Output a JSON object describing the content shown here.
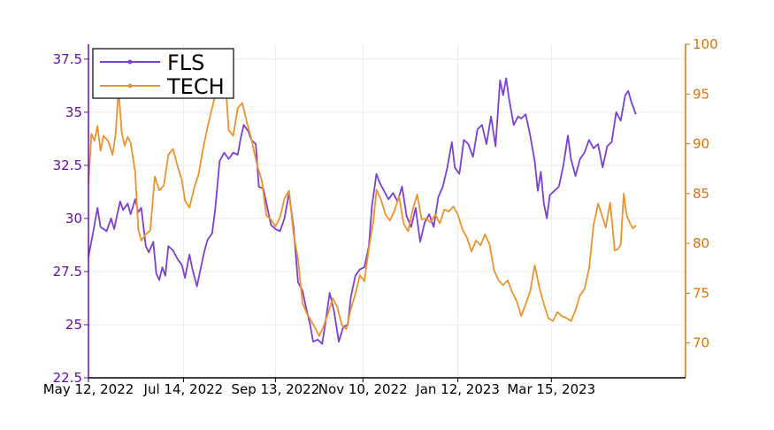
{
  "chart_data": {
    "type": "line",
    "x_axis": {
      "type": "date",
      "range": [
        "2022-05-12",
        "2023-06-12"
      ],
      "tick_labels": [
        "May 12, 2022",
        "Jul 14, 2022",
        "Sep 13, 2022",
        "Nov 10, 2022",
        "Jan 12, 2023",
        "Mar 15, 2023"
      ],
      "tick_dates": [
        "2022-05-12",
        "2022-07-14",
        "2022-09-13",
        "2022-11-10",
        "2023-01-12",
        "2023-03-15"
      ]
    },
    "y_axis_left": {
      "ylim": [
        22.5,
        38.2
      ],
      "ticks": [
        22.5,
        25,
        27.5,
        30,
        32.5,
        35,
        37.5
      ],
      "tick_labels": [
        "22.5",
        "25",
        "27.5",
        "30",
        "32.5",
        "35",
        "37.5"
      ],
      "color": "#6a0dad"
    },
    "y_axis_right": {
      "ylim": [
        66.5,
        100
      ],
      "ticks": [
        70,
        75,
        80,
        85,
        90,
        95,
        100
      ],
      "tick_labels": [
        "70",
        "75",
        "80",
        "85",
        "90",
        "95",
        "100"
      ],
      "color": "#d9730d"
    },
    "grid": true,
    "legend": {
      "placement": "top-left",
      "entries": [
        "FLS",
        "TECH"
      ]
    },
    "series": [
      {
        "name": "FLS",
        "axis": "left",
        "color": "#7b3fd6",
        "points": [
          [
            "2022-05-12",
            28.2
          ],
          [
            "2022-05-15",
            29.3
          ],
          [
            "2022-05-18",
            30.5
          ],
          [
            "2022-05-20",
            29.6
          ],
          [
            "2022-05-24",
            29.4
          ],
          [
            "2022-05-27",
            30.0
          ],
          [
            "2022-05-29",
            29.5
          ],
          [
            "2022-06-02",
            30.8
          ],
          [
            "2022-06-04",
            30.4
          ],
          [
            "2022-06-07",
            30.7
          ],
          [
            "2022-06-09",
            30.2
          ],
          [
            "2022-06-12",
            30.9
          ],
          [
            "2022-06-14",
            30.3
          ],
          [
            "2022-06-16",
            30.5
          ],
          [
            "2022-06-19",
            28.7
          ],
          [
            "2022-06-21",
            28.4
          ],
          [
            "2022-06-24",
            28.9
          ],
          [
            "2022-06-26",
            27.4
          ],
          [
            "2022-06-28",
            27.1
          ],
          [
            "2022-06-30",
            27.7
          ],
          [
            "2022-07-02",
            27.3
          ],
          [
            "2022-07-04",
            28.7
          ],
          [
            "2022-07-07",
            28.5
          ],
          [
            "2022-07-10",
            28.1
          ],
          [
            "2022-07-13",
            27.8
          ],
          [
            "2022-07-15",
            27.2
          ],
          [
            "2022-07-18",
            28.3
          ],
          [
            "2022-07-20",
            27.6
          ],
          [
            "2022-07-23",
            26.8
          ],
          [
            "2022-07-25",
            27.5
          ],
          [
            "2022-07-28",
            28.5
          ],
          [
            "2022-07-30",
            29.0
          ],
          [
            "2022-08-02",
            29.3
          ],
          [
            "2022-08-04",
            30.4
          ],
          [
            "2022-08-07",
            32.7
          ],
          [
            "2022-08-10",
            33.1
          ],
          [
            "2022-08-13",
            32.8
          ],
          [
            "2022-08-16",
            33.1
          ],
          [
            "2022-08-19",
            33.0
          ],
          [
            "2022-08-21",
            33.8
          ],
          [
            "2022-08-23",
            34.4
          ],
          [
            "2022-08-26",
            34.1
          ],
          [
            "2022-08-28",
            33.7
          ],
          [
            "2022-08-31",
            33.5
          ],
          [
            "2022-09-02",
            31.5
          ],
          [
            "2022-09-05",
            31.4
          ],
          [
            "2022-09-08",
            30.4
          ],
          [
            "2022-09-10",
            29.7
          ],
          [
            "2022-09-13",
            29.5
          ],
          [
            "2022-09-16",
            29.4
          ],
          [
            "2022-09-19",
            30.0
          ],
          [
            "2022-09-22",
            31.2
          ],
          [
            "2022-09-25",
            29.6
          ],
          [
            "2022-09-28",
            27.0
          ],
          [
            "2022-10-01",
            26.6
          ],
          [
            "2022-10-03",
            25.9
          ],
          [
            "2022-10-06",
            25.0
          ],
          [
            "2022-10-08",
            24.2
          ],
          [
            "2022-10-11",
            24.3
          ],
          [
            "2022-10-14",
            24.1
          ],
          [
            "2022-10-16",
            25.0
          ],
          [
            "2022-10-19",
            26.5
          ],
          [
            "2022-10-22",
            25.6
          ],
          [
            "2022-10-25",
            24.2
          ],
          [
            "2022-10-28",
            24.9
          ],
          [
            "2022-10-31",
            25.0
          ],
          [
            "2022-11-02",
            26.3
          ],
          [
            "2022-11-05",
            27.3
          ],
          [
            "2022-11-08",
            27.6
          ],
          [
            "2022-11-11",
            27.7
          ],
          [
            "2022-11-14",
            28.7
          ],
          [
            "2022-11-16",
            30.6
          ],
          [
            "2022-11-19",
            32.1
          ],
          [
            "2022-11-21",
            31.7
          ],
          [
            "2022-11-24",
            31.3
          ],
          [
            "2022-11-27",
            30.9
          ],
          [
            "2022-11-30",
            31.2
          ],
          [
            "2022-12-03",
            30.8
          ],
          [
            "2022-12-06",
            31.5
          ],
          [
            "2022-12-09",
            30.1
          ],
          [
            "2022-12-12",
            29.6
          ],
          [
            "2022-12-15",
            30.5
          ],
          [
            "2022-12-18",
            28.9
          ],
          [
            "2022-12-21",
            29.8
          ],
          [
            "2022-12-24",
            30.2
          ],
          [
            "2022-12-27",
            29.6
          ],
          [
            "2022-12-30",
            31.0
          ],
          [
            "2023-01-02",
            31.5
          ],
          [
            "2023-01-05",
            32.4
          ],
          [
            "2023-01-08",
            33.6
          ],
          [
            "2023-01-10",
            32.4
          ],
          [
            "2023-01-13",
            32.1
          ],
          [
            "2023-01-16",
            33.7
          ],
          [
            "2023-01-19",
            33.5
          ],
          [
            "2023-01-22",
            32.9
          ],
          [
            "2023-01-25",
            34.2
          ],
          [
            "2023-01-28",
            34.4
          ],
          [
            "2023-01-31",
            33.5
          ],
          [
            "2023-02-03",
            34.8
          ],
          [
            "2023-02-06",
            33.4
          ],
          [
            "2023-02-09",
            36.5
          ],
          [
            "2023-02-11",
            35.8
          ],
          [
            "2023-02-13",
            36.6
          ],
          [
            "2023-02-15",
            35.6
          ],
          [
            "2023-02-18",
            34.4
          ],
          [
            "2023-02-21",
            34.8
          ],
          [
            "2023-02-23",
            34.7
          ],
          [
            "2023-02-26",
            34.9
          ],
          [
            "2023-03-01",
            33.9
          ],
          [
            "2023-03-04",
            32.7
          ],
          [
            "2023-03-06",
            31.3
          ],
          [
            "2023-03-08",
            32.2
          ],
          [
            "2023-03-10",
            30.7
          ],
          [
            "2023-03-12",
            30.0
          ],
          [
            "2023-03-14",
            31.1
          ],
          [
            "2023-03-17",
            31.3
          ],
          [
            "2023-03-20",
            31.5
          ],
          [
            "2023-03-23",
            32.5
          ],
          [
            "2023-03-26",
            33.9
          ],
          [
            "2023-03-28",
            32.8
          ],
          [
            "2023-03-31",
            32.0
          ],
          [
            "2023-04-03",
            32.8
          ],
          [
            "2023-04-06",
            33.1
          ],
          [
            "2023-04-09",
            33.7
          ],
          [
            "2023-04-12",
            33.3
          ],
          [
            "2023-04-15",
            33.5
          ],
          [
            "2023-04-18",
            32.4
          ],
          [
            "2023-04-21",
            33.4
          ],
          [
            "2023-04-24",
            33.6
          ],
          [
            "2023-04-27",
            35.0
          ],
          [
            "2023-04-30",
            34.6
          ],
          [
            "2023-05-03",
            35.8
          ],
          [
            "2023-05-05",
            36.0
          ],
          [
            "2023-05-07",
            35.5
          ],
          [
            "2023-05-10",
            34.9
          ]
        ]
      },
      {
        "name": "TECH",
        "axis": "right",
        "color": "#f0922b",
        "points": [
          [
            "2022-05-12",
            86.0
          ],
          [
            "2022-05-14",
            91.0
          ],
          [
            "2022-05-16",
            90.3
          ],
          [
            "2022-05-18",
            91.8
          ],
          [
            "2022-05-20",
            89.3
          ],
          [
            "2022-05-22",
            90.8
          ],
          [
            "2022-05-25",
            90.3
          ],
          [
            "2022-05-28",
            88.9
          ],
          [
            "2022-05-30",
            91.0
          ],
          [
            "2022-06-01",
            95.5
          ],
          [
            "2022-06-03",
            91.2
          ],
          [
            "2022-06-05",
            89.8
          ],
          [
            "2022-06-07",
            90.7
          ],
          [
            "2022-06-09",
            90.1
          ],
          [
            "2022-06-12",
            87.2
          ],
          [
            "2022-06-14",
            81.4
          ],
          [
            "2022-06-16",
            80.3
          ],
          [
            "2022-06-19",
            80.9
          ],
          [
            "2022-06-22",
            81.3
          ],
          [
            "2022-06-25",
            86.7
          ],
          [
            "2022-06-28",
            85.3
          ],
          [
            "2022-07-01",
            85.8
          ],
          [
            "2022-07-04",
            88.9
          ],
          [
            "2022-07-07",
            89.5
          ],
          [
            "2022-07-10",
            87.8
          ],
          [
            "2022-07-13",
            86.3
          ],
          [
            "2022-07-15",
            84.3
          ],
          [
            "2022-07-18",
            83.6
          ],
          [
            "2022-07-21",
            85.5
          ],
          [
            "2022-07-24",
            86.9
          ],
          [
            "2022-07-27",
            89.5
          ],
          [
            "2022-07-30",
            91.7
          ],
          [
            "2022-08-02",
            93.6
          ],
          [
            "2022-08-05",
            95.4
          ],
          [
            "2022-08-08",
            96.9
          ],
          [
            "2022-08-11",
            95.9
          ],
          [
            "2022-08-13",
            91.4
          ],
          [
            "2022-08-16",
            90.8
          ],
          [
            "2022-08-19",
            93.6
          ],
          [
            "2022-08-22",
            94.1
          ],
          [
            "2022-08-25",
            92.2
          ],
          [
            "2022-08-28",
            90.5
          ],
          [
            "2022-09-01",
            87.8
          ],
          [
            "2022-09-04",
            86.3
          ],
          [
            "2022-09-07",
            82.8
          ],
          [
            "2022-09-10",
            82.4
          ],
          [
            "2022-09-13",
            81.7
          ],
          [
            "2022-09-16",
            82.6
          ],
          [
            "2022-09-19",
            84.5
          ],
          [
            "2022-09-22",
            85.3
          ],
          [
            "2022-09-25",
            81.0
          ],
          [
            "2022-09-28",
            78.4
          ],
          [
            "2022-10-01",
            74.0
          ],
          [
            "2022-10-04",
            72.9
          ],
          [
            "2022-10-06",
            72.4
          ],
          [
            "2022-10-09",
            71.6
          ],
          [
            "2022-10-12",
            70.7
          ],
          [
            "2022-10-15",
            71.7
          ],
          [
            "2022-10-18",
            73.0
          ],
          [
            "2022-10-21",
            74.5
          ],
          [
            "2022-10-24",
            73.6
          ],
          [
            "2022-10-27",
            71.8
          ],
          [
            "2022-10-30",
            71.4
          ],
          [
            "2022-11-02",
            73.4
          ],
          [
            "2022-11-05",
            74.9
          ],
          [
            "2022-11-08",
            76.8
          ],
          [
            "2022-11-11",
            76.2
          ],
          [
            "2022-11-14",
            79.5
          ],
          [
            "2022-11-17",
            82.3
          ],
          [
            "2022-11-19",
            85.4
          ],
          [
            "2022-11-22",
            84.4
          ],
          [
            "2022-11-25",
            82.9
          ],
          [
            "2022-11-28",
            82.3
          ],
          [
            "2022-12-01",
            83.3
          ],
          [
            "2022-12-04",
            84.7
          ],
          [
            "2022-12-07",
            82.0
          ],
          [
            "2022-12-10",
            81.2
          ],
          [
            "2022-12-13",
            83.4
          ],
          [
            "2022-12-16",
            84.9
          ],
          [
            "2022-12-19",
            82.4
          ],
          [
            "2022-12-22",
            82.5
          ],
          [
            "2022-12-25",
            82.1
          ],
          [
            "2022-12-28",
            82.9
          ],
          [
            "2022-12-31",
            82.0
          ],
          [
            "2023-01-03",
            83.4
          ],
          [
            "2023-01-06",
            83.2
          ],
          [
            "2023-01-09",
            83.7
          ],
          [
            "2023-01-12",
            82.9
          ],
          [
            "2023-01-15",
            81.4
          ],
          [
            "2023-01-18",
            80.6
          ],
          [
            "2023-01-21",
            79.2
          ],
          [
            "2023-01-24",
            80.3
          ],
          [
            "2023-01-27",
            79.8
          ],
          [
            "2023-01-30",
            80.9
          ],
          [
            "2023-02-02",
            79.9
          ],
          [
            "2023-02-05",
            77.3
          ],
          [
            "2023-02-08",
            76.3
          ],
          [
            "2023-02-11",
            75.8
          ],
          [
            "2023-02-14",
            76.3
          ],
          [
            "2023-02-17",
            75.1
          ],
          [
            "2023-02-20",
            74.2
          ],
          [
            "2023-02-23",
            72.7
          ],
          [
            "2023-02-26",
            73.9
          ],
          [
            "2023-03-01",
            75.2
          ],
          [
            "2023-03-04",
            77.8
          ],
          [
            "2023-03-07",
            75.6
          ],
          [
            "2023-03-10",
            73.9
          ],
          [
            "2023-03-13",
            72.5
          ],
          [
            "2023-03-16",
            72.2
          ],
          [
            "2023-03-19",
            73.1
          ],
          [
            "2023-03-22",
            72.7
          ],
          [
            "2023-03-25",
            72.5
          ],
          [
            "2023-03-28",
            72.2
          ],
          [
            "2023-03-31",
            73.3
          ],
          [
            "2023-04-03",
            74.8
          ],
          [
            "2023-04-06",
            75.4
          ],
          [
            "2023-04-09",
            77.5
          ],
          [
            "2023-04-12",
            81.8
          ],
          [
            "2023-04-15",
            84.0
          ],
          [
            "2023-04-17",
            83.1
          ],
          [
            "2023-04-20",
            81.6
          ],
          [
            "2023-04-23",
            84.1
          ],
          [
            "2023-04-26",
            79.3
          ],
          [
            "2023-04-28",
            79.4
          ],
          [
            "2023-04-30",
            79.9
          ],
          [
            "2023-05-02",
            85.0
          ],
          [
            "2023-05-04",
            82.8
          ],
          [
            "2023-05-06",
            82.1
          ],
          [
            "2023-05-08",
            81.5
          ],
          [
            "2023-05-10",
            81.8
          ]
        ]
      }
    ]
  }
}
